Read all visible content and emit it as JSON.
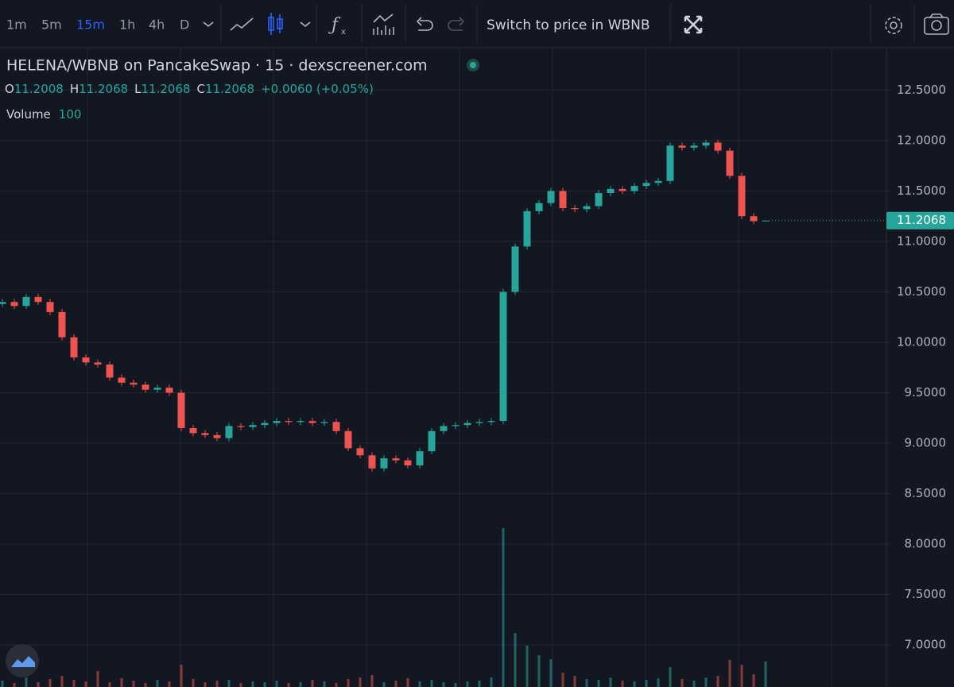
{
  "toolbar": {
    "intervals": [
      "1m",
      "5m",
      "15m",
      "1h",
      "4h",
      "D"
    ],
    "active_interval": "15m",
    "switch_button": "Switch to price in WBNB"
  },
  "legend": {
    "title": "HELENA/WBNB on PancakeSwap · 15 · dexscreener.com",
    "open_label": "O",
    "open": 11.2008,
    "high_label": "H",
    "high": 11.2068,
    "low_label": "L",
    "low": 11.2068,
    "close_label": "C",
    "close": 11.2068,
    "change": "+0.0060 (+0.05%)",
    "volume_label": "Volume",
    "volume_length": 100
  },
  "chart_data": {
    "type": "candlestick",
    "ylim": [
      6.583,
      12.921
    ],
    "yticks": [
      {
        "value": 7,
        "label": "7.0000"
      },
      {
        "value": 7.5,
        "label": "7.5000"
      },
      {
        "value": 8,
        "label": "8.0000"
      },
      {
        "value": 8.5,
        "label": "8.5000"
      },
      {
        "value": 9,
        "label": "9.0000"
      },
      {
        "value": 9.5,
        "label": "9.5000"
      },
      {
        "value": 10,
        "label": "10.0000"
      },
      {
        "value": 10.5,
        "label": "10.5000"
      },
      {
        "value": 11,
        "label": "11.0000"
      },
      {
        "value": 11.5,
        "label": "11.5000"
      },
      {
        "value": 12,
        "label": "12.0000"
      },
      {
        "value": 12.5,
        "label": "12.5000"
      }
    ],
    "grid": true,
    "up_color": "#26a69a",
    "down_color": "#ef5350",
    "open": [
      10.38,
      10.4,
      10.36,
      10.45,
      10.4,
      10.3,
      10.05,
      9.85,
      9.8,
      9.78,
      9.65,
      9.6,
      9.58,
      9.53,
      9.55,
      9.5,
      9.15,
      9.1,
      9.08,
      9.05,
      9.17,
      9.16,
      9.18,
      9.2,
      9.22,
      9.21,
      9.22,
      9.2,
      9.21,
      9.12,
      8.95,
      8.88,
      8.75,
      8.85,
      8.83,
      8.78,
      8.92,
      9.12,
      9.17,
      9.18,
      9.2,
      9.21,
      9.22,
      10.5,
      10.95,
      11.3,
      11.38,
      11.5,
      11.33,
      11.32,
      11.35,
      11.48,
      11.52,
      11.5,
      11.55,
      11.58,
      11.6,
      11.95,
      11.93,
      11.95,
      11.98,
      11.9,
      11.65,
      11.25,
      11.2008
    ],
    "high": [
      10.43,
      10.43,
      10.48,
      10.48,
      10.43,
      10.33,
      10.08,
      9.88,
      9.83,
      9.81,
      9.68,
      9.63,
      9.61,
      9.58,
      9.58,
      9.53,
      9.18,
      9.13,
      9.11,
      9.2,
      9.2,
      9.21,
      9.23,
      9.25,
      9.25,
      9.25,
      9.25,
      9.24,
      9.24,
      9.15,
      8.98,
      8.91,
      8.88,
      8.88,
      8.86,
      8.95,
      9.15,
      9.2,
      9.21,
      9.23,
      9.24,
      9.25,
      10.53,
      10.98,
      11.33,
      11.41,
      11.53,
      11.53,
      11.36,
      11.38,
      11.51,
      11.55,
      11.55,
      11.58,
      11.61,
      11.63,
      11.98,
      11.98,
      11.98,
      12.01,
      12.01,
      11.93,
      11.68,
      11.28,
      11.2068
    ],
    "low": [
      10.35,
      10.33,
      10.33,
      10.37,
      10.27,
      10.02,
      9.82,
      9.77,
      9.75,
      9.62,
      9.57,
      9.55,
      9.5,
      9.5,
      9.47,
      9.12,
      9.07,
      9.05,
      9.02,
      9.02,
      9.13,
      9.13,
      9.15,
      9.17,
      9.18,
      9.18,
      9.17,
      9.17,
      9.09,
      8.92,
      8.85,
      8.72,
      8.72,
      8.8,
      8.75,
      8.75,
      8.89,
      9.09,
      9.14,
      9.15,
      9.17,
      9.18,
      9.19,
      10.47,
      10.92,
      11.27,
      11.35,
      11.3,
      11.29,
      11.29,
      11.32,
      11.45,
      11.47,
      11.47,
      11.52,
      11.55,
      11.57,
      11.9,
      11.9,
      11.92,
      11.87,
      11.62,
      11.22,
      11.17,
      11.2068
    ],
    "close": [
      10.4,
      10.36,
      10.45,
      10.4,
      10.3,
      10.05,
      9.85,
      9.8,
      9.78,
      9.65,
      9.6,
      9.58,
      9.53,
      9.55,
      9.5,
      9.15,
      9.1,
      9.08,
      9.05,
      9.17,
      9.16,
      9.18,
      9.2,
      9.22,
      9.21,
      9.22,
      9.2,
      9.21,
      9.12,
      8.95,
      8.88,
      8.75,
      8.85,
      8.83,
      8.78,
      8.92,
      9.12,
      9.17,
      9.18,
      9.2,
      9.21,
      9.22,
      10.5,
      10.95,
      11.3,
      11.38,
      11.5,
      11.33,
      11.32,
      11.35,
      11.48,
      11.52,
      11.5,
      11.55,
      11.58,
      11.6,
      11.95,
      11.93,
      11.95,
      11.98,
      11.9,
      11.65,
      11.25,
      11.2008,
      11.2068
    ],
    "volume": [
      8,
      5,
      12,
      6,
      10,
      14,
      9,
      7,
      20,
      6,
      11,
      8,
      5,
      9,
      7,
      28,
      10,
      6,
      8,
      9,
      5,
      7,
      6,
      8,
      5,
      6,
      9,
      7,
      5,
      10,
      12,
      15,
      6,
      8,
      11,
      7,
      9,
      6,
      5,
      7,
      8,
      12,
      200,
      68,
      52,
      40,
      35,
      18,
      14,
      10,
      9,
      12,
      8,
      7,
      9,
      11,
      25,
      10,
      8,
      12,
      14,
      34,
      28,
      16,
      32
    ]
  }
}
